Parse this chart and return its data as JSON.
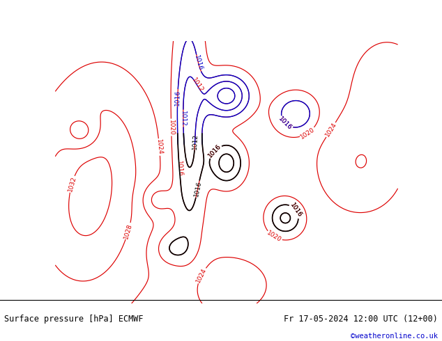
{
  "title_left": "Surface pressure [hPa] ECMWF",
  "title_right": "Fr 17-05-2024 12:00 UTC (12+00)",
  "credit": "©weatheronline.co.uk",
  "bg_color_land": "#b5d990",
  "bg_color_sea": "#e0e0e0",
  "bg_color_mountain": "#a0a0a0",
  "contour_color_red": "#dd0000",
  "contour_color_blue": "#0000cc",
  "contour_color_black": "#000000",
  "label_fontsize": 6.5,
  "footer_fontsize": 8.5,
  "credit_fontsize": 7.5,
  "figsize": [
    6.34,
    4.9
  ],
  "dpi": 100,
  "extent": [
    -27,
    37,
    29,
    72
  ]
}
